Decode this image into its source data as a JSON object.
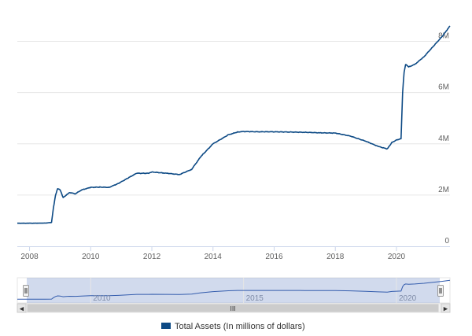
{
  "chart_data": {
    "type": "line",
    "title": "",
    "xlabel": "",
    "ylabel": "",
    "xlim": [
      2007.6,
      2021.75
    ],
    "ylim": [
      0,
      9000000
    ],
    "x_ticks": [
      {
        "value": 2008,
        "label": "2008"
      },
      {
        "value": 2010,
        "label": "2010"
      },
      {
        "value": 2012,
        "label": "2012"
      },
      {
        "value": 2014,
        "label": "2014"
      },
      {
        "value": 2016,
        "label": "2016"
      },
      {
        "value": 2018,
        "label": "2018"
      },
      {
        "value": 2020,
        "label": "2020"
      }
    ],
    "y_ticks": [
      {
        "value": 0,
        "label": "0"
      },
      {
        "value": 2000000,
        "label": "2M"
      },
      {
        "value": 4000000,
        "label": "4M"
      },
      {
        "value": 6000000,
        "label": "6M"
      },
      {
        "value": 8000000,
        "label": "8M"
      }
    ],
    "grid": "horizontal",
    "legend_position": "bottom-center",
    "series": [
      {
        "name": "Total Assets (In millions of dollars)",
        "color": "#0d4a85",
        "x": [
          2007.6,
          2008.0,
          2008.5,
          2008.72,
          2008.78,
          2008.85,
          2008.92,
          2009.0,
          2009.1,
          2009.2,
          2009.3,
          2009.5,
          2009.7,
          2010.0,
          2010.3,
          2010.6,
          2010.9,
          2011.2,
          2011.5,
          2011.9,
          2012.0,
          2012.5,
          2012.9,
          2013.3,
          2013.6,
          2014.0,
          2014.5,
          2014.8,
          2015.0,
          2015.5,
          2016.0,
          2016.5,
          2017.0,
          2017.5,
          2018.0,
          2018.5,
          2019.0,
          2019.4,
          2019.7,
          2019.85,
          2020.0,
          2020.15,
          2020.2,
          2020.25,
          2020.3,
          2020.4,
          2020.6,
          2020.9,
          2021.2,
          2021.5,
          2021.75
        ],
        "y": [
          900000,
          900000,
          905000,
          930000,
          1500000,
          2000000,
          2250000,
          2200000,
          1900000,
          2000000,
          2100000,
          2050000,
          2200000,
          2300000,
          2310000,
          2300000,
          2450000,
          2650000,
          2850000,
          2850000,
          2900000,
          2850000,
          2800000,
          3000000,
          3500000,
          4000000,
          4350000,
          4460000,
          4480000,
          4470000,
          4470000,
          4460000,
          4450000,
          4430000,
          4420000,
          4300000,
          4100000,
          3900000,
          3800000,
          4050000,
          4150000,
          4200000,
          6000000,
          6800000,
          7100000,
          7000000,
          7100000,
          7400000,
          7800000,
          8200000,
          8600000
        ]
      }
    ]
  },
  "navigator": {
    "labels": [
      {
        "value": 2010,
        "label": "2010"
      },
      {
        "value": 2015,
        "label": "2015"
      },
      {
        "value": 2020,
        "label": "2020"
      }
    ],
    "handle_label": "III",
    "left_arrow": "◀",
    "right_arrow": "▶"
  },
  "legend": {
    "label": "Total Assets (In millions of dollars)",
    "swatch_color": "#0d4a85"
  }
}
